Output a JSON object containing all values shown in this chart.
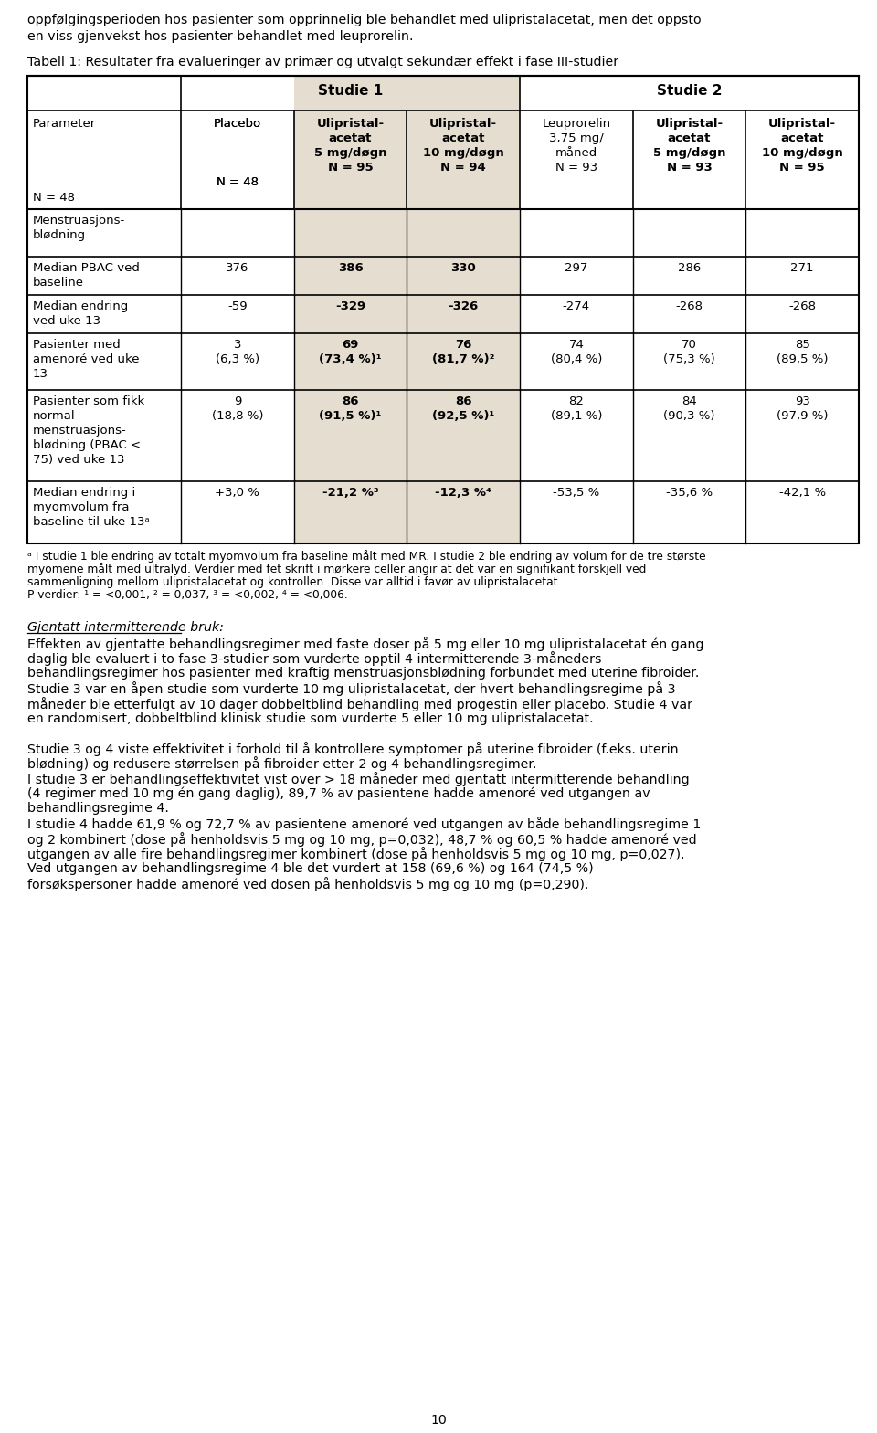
{
  "page_number": "10",
  "top_text_line1": "oppfølgingsperioden hos pasienter som opprinnelig ble behandlet med ulipristalacetat, men det oppsto",
  "top_text_line2": "en viss gjenvekst hos pasienter behandlet med leuprorelin.",
  "table_title": "Tabell 1: Resultater fra evalueringer av primær og utvalgt sekundær effekt i fase III-studier",
  "studie1_label": "Studie 1",
  "studie2_label": "Studie 2",
  "shade_color": "#e5ddd0",
  "col_header_texts": [
    "Parameter\n\n\n\nN = 48",
    "Placebo\n\n\n\nN = 48",
    "Ulipristal-\nacetat\n5 mg/døgn\nN = 95",
    "Ulipristal-\nacetat\n10 mg/døgn\nN = 94",
    "Leuprorelin\n3,75 mg/\nmåned\nN = 93",
    "Ulipristal-\nacetat\n5 mg/døgn\nN = 93",
    "Ulipristal-\nacetat\n10 mg/døgn\nN = 95"
  ],
  "col_bold": [
    false,
    false,
    true,
    true,
    false,
    true,
    true
  ],
  "rows": [
    {
      "param": "Menstruasjons-\nblødning",
      "values": [
        "",
        "",
        "",
        "",
        "",
        ""
      ],
      "values_bold": [
        false,
        false,
        false,
        false,
        false,
        false
      ]
    },
    {
      "param": "Median PBAC ved\nbaseline",
      "values": [
        "376",
        "386",
        "330",
        "297",
        "286",
        "271"
      ],
      "values_bold": [
        false,
        true,
        true,
        false,
        false,
        false
      ]
    },
    {
      "param": "Median endring\nved uke 13",
      "values": [
        "-59",
        "-329",
        "-326",
        "-274",
        "-268",
        "-268"
      ],
      "values_bold": [
        false,
        true,
        true,
        false,
        false,
        false
      ]
    },
    {
      "param": "Pasienter med\namenoré ved uke\n13",
      "values": [
        "3\n(6,3 %)",
        "69\n(73,4 %)¹",
        "76\n(81,7 %)²",
        "74\n(80,4 %)",
        "70\n(75,3 %)",
        "85\n(89,5 %)"
      ],
      "values_bold": [
        false,
        true,
        true,
        false,
        false,
        false
      ]
    },
    {
      "param": "Pasienter som fikk\nnormal\nmenstruasjons-\nblødning (PBAC <\n75) ved uke 13",
      "values": [
        "9\n(18,8 %)",
        "86\n(91,5 %)¹",
        "86\n(92,5 %)¹",
        "82\n(89,1 %)",
        "84\n(90,3 %)",
        "93\n(97,9 %)"
      ],
      "values_bold": [
        false,
        true,
        true,
        false,
        false,
        false
      ]
    },
    {
      "param": "Median endring i\nmyomvolum fra\nbaseline til uke 13ᵃ",
      "values": [
        "+3,0 %",
        "-21,2 %³",
        "-12,3 %⁴",
        "-53,5 %",
        "-35,6 %",
        "-42,1 %"
      ],
      "values_bold": [
        false,
        true,
        true,
        false,
        false,
        false
      ]
    }
  ],
  "footnotes": [
    "ᵃ I studie 1 ble endring av totalt myomvolum fra baseline målt med MR. I studie 2 ble endring av volum for de tre største",
    "myomene målt med ultralyd. Verdier med fet skrift i mørkere celler angir at det var en signifikant forskjell ved",
    "sammenligning mellom ulipristalacetat og kontrollen. Disse var alltid i favør av ulipristalacetat.",
    "P-verdier: ¹ = <0,001, ² = 0,037, ³ = <0,002, ⁴ = <0,006."
  ],
  "section_title": "Gjentatt intermitterende bruk:",
  "body_para1": [
    "Effekten av gjentatte behandlingsregimer med faste doser på 5 mg eller 10 mg ulipristalacetat én gang",
    "daglig ble evaluert i to fase 3-studier som vurderte opptil 4 intermitterende 3-måneders",
    "behandlingsregimer hos pasienter med kraftig menstruasjonsblødning forbundet med uterine fibroider.",
    "Studie 3 var en åpen studie som vurderte 10 mg ulipristalacetat, der hvert behandlingsregime på 3",
    "måneder ble etterfulgt av 10 dager dobbeltblind behandling med progestin eller placebo. Studie 4 var",
    "en randomisert, dobbeltblind klinisk studie som vurderte 5 eller 10 mg ulipristalacetat."
  ],
  "body_para2": [
    "Studie 3 og 4 viste effektivitet i forhold til å kontrollere symptomer på uterine fibroider (f.eks. uterin",
    "blødning) og redusere størrelsen på fibroider etter 2 og 4 behandlingsregimer.",
    "I studie 3 er behandlingseffektivitet vist over > 18 måneder med gjentatt intermitterende behandling",
    "(4 regimer med 10 mg én gang daglig), 89,7 % av pasientene hadde amenoré ved utgangen av",
    "behandlingsregime 4.",
    "I studie 4 hadde 61,9 % og 72,7 % av pasientene amenoré ved utgangen av både behandlingsregime 1",
    "og 2 kombinert (dose på henholdsvis 5 mg og 10 mg, p=0,032), 48,7 % og 60,5 % hadde amenoré ved",
    "utgangen av alle fire behandlingsregimer kombinert (dose på henholdsvis 5 mg og 10 mg, p=0,027).",
    "Ved utgangen av behandlingsregime 4 ble det vurdert at 158 (69,6 %) og 164 (74,5 %)",
    "forsøkspersoner hadde amenoré ved dosen på henholdsvis 5 mg og 10 mg (p=0,290)."
  ]
}
